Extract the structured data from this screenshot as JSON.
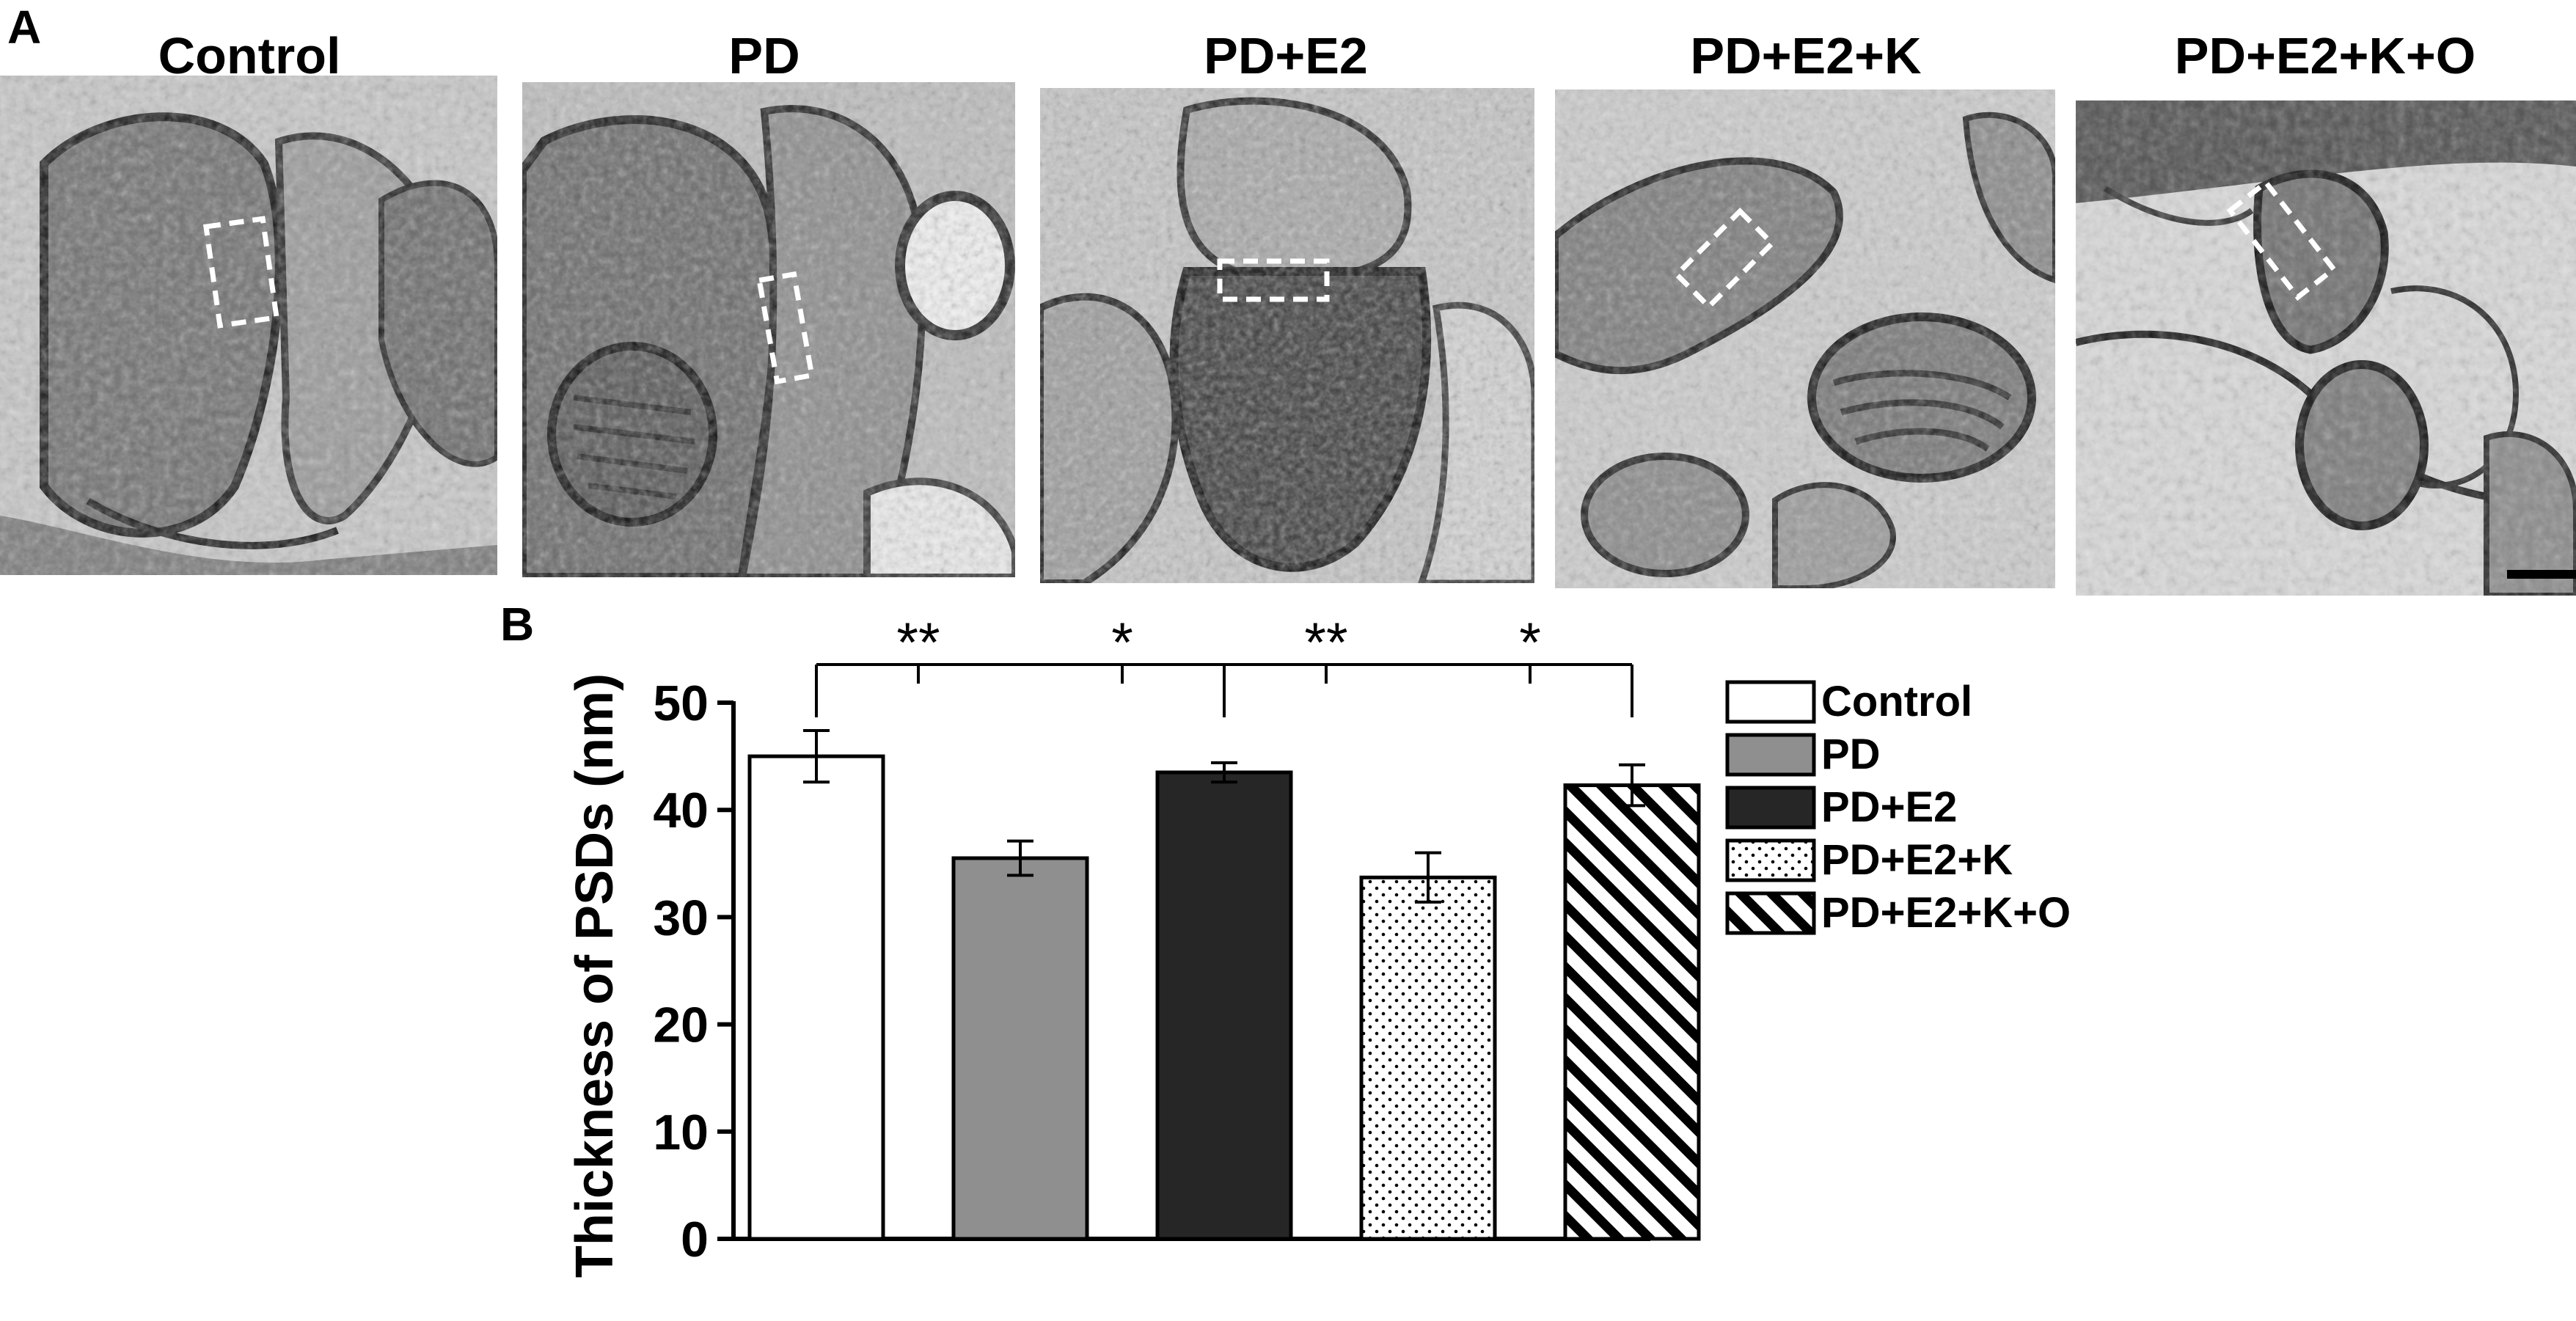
{
  "panel_labels": {
    "a": "A",
    "b": "B"
  },
  "micrographs": [
    {
      "title": "Control"
    },
    {
      "title": "PD"
    },
    {
      "title": "PD+E2"
    },
    {
      "title": "PD+E2+K"
    },
    {
      "title": "PD+E2+K+O"
    }
  ],
  "chart_data": {
    "type": "bar",
    "categories": [
      "Control",
      "PD",
      "PD+E2",
      "PD+E2+K",
      "PD+E2+K+O"
    ],
    "values": [
      45,
      35.5,
      43.5,
      33.7,
      42.3
    ],
    "errors": [
      2.4,
      1.6,
      0.9,
      2.3,
      1.9
    ],
    "fills": [
      "white",
      "gray",
      "black",
      "dots",
      "stripes"
    ],
    "ylabel": "Thickness of PSDs (nm)",
    "ylim": [
      0,
      50
    ],
    "yticks": [
      0,
      10,
      20,
      30,
      40,
      50
    ],
    "legend_position": "right",
    "legend": [
      "Control",
      "PD",
      "PD+E2",
      "PD+E2+K",
      "PD+E2+K+O"
    ],
    "significance": [
      {
        "from": 0,
        "to": 1,
        "label": "**"
      },
      {
        "from": 1,
        "to": 2,
        "label": "*"
      },
      {
        "from": 2,
        "to": 3,
        "label": "**"
      },
      {
        "from": 3,
        "to": 4,
        "label": "*"
      }
    ]
  }
}
